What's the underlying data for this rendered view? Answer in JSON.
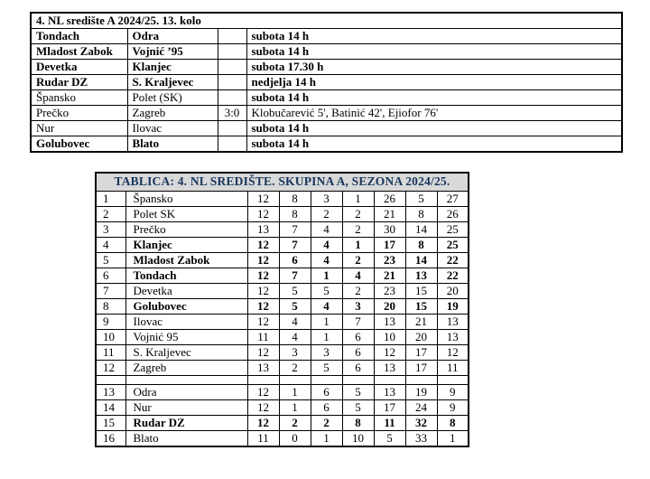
{
  "fixtures": {
    "title": "4. NL središte A 2024/25. 13. kolo",
    "rows": [
      {
        "home": "Tondach",
        "away": "Odra",
        "score": "",
        "info": "subota 14 h",
        "teams_bold": true,
        "info_bold": true
      },
      {
        "home": "Mladost Zabok",
        "away": "Vojnić ’95",
        "score": "",
        "info": "subota 14 h",
        "teams_bold": true,
        "info_bold": true
      },
      {
        "home": "Devetka",
        "away": "Klanjec",
        "score": "",
        "info": "subota 17.30 h",
        "teams_bold": true,
        "info_bold": true
      },
      {
        "home": "Rudar DZ",
        "away": "S. Kraljevec",
        "score": "",
        "info": "nedjelja 14 h",
        "teams_bold": true,
        "info_bold": true
      },
      {
        "home": "Špansko",
        "away": "Polet (SK)",
        "score": "",
        "info": "subota 14 h",
        "teams_bold": false,
        "info_bold": true
      },
      {
        "home": "Prečko",
        "away": "Zagreb",
        "score": "3:0",
        "info": "Klobučarević 5', Batinić 42', Ejiofor 76'",
        "teams_bold": false,
        "info_bold": false
      },
      {
        "home": "Nur",
        "away": "Ilovac",
        "score": "",
        "info": "subota 14 h",
        "teams_bold": false,
        "info_bold": true
      },
      {
        "home": "Golubovec",
        "away": "Blato",
        "score": "",
        "info": "subota 14 h",
        "teams_bold": true,
        "info_bold": true
      }
    ]
  },
  "standings": {
    "title": "TABLICA: 4. NL SREDIŠTE. SKUPINA A, SEZONA 2024/25.",
    "colors": {
      "title_text": "#17365d",
      "title_bg": "#d9d9d9",
      "border": "#000000"
    },
    "rows": [
      {
        "rank": "1",
        "team": "Špansko",
        "stats": [
          "12",
          "8",
          "3",
          "1",
          "26",
          "5",
          "27"
        ],
        "bold": false
      },
      {
        "rank": "2",
        "team": "Polet SK",
        "stats": [
          "12",
          "8",
          "2",
          "2",
          "21",
          "8",
          "26"
        ],
        "bold": false
      },
      {
        "rank": "3",
        "team": "Prečko",
        "stats": [
          "13",
          "7",
          "4",
          "2",
          "30",
          "14",
          "25"
        ],
        "bold": false
      },
      {
        "rank": "4",
        "team": "Klanjec",
        "stats": [
          "12",
          "7",
          "4",
          "1",
          "17",
          "8",
          "25"
        ],
        "bold": true
      },
      {
        "rank": "5",
        "team": "Mladost Zabok",
        "stats": [
          "12",
          "6",
          "4",
          "2",
          "23",
          "14",
          "22"
        ],
        "bold": true
      },
      {
        "rank": "6",
        "team": "Tondach",
        "stats": [
          "12",
          "7",
          "1",
          "4",
          "21",
          "13",
          "22"
        ],
        "bold": true
      },
      {
        "rank": "7",
        "team": "Devetka",
        "stats": [
          "12",
          "5",
          "5",
          "2",
          "23",
          "15",
          "20"
        ],
        "bold": false
      },
      {
        "rank": "8",
        "team": "Golubovec",
        "stats": [
          "12",
          "5",
          "4",
          "3",
          "20",
          "15",
          "19"
        ],
        "bold": true
      },
      {
        "rank": "9",
        "team": "Ilovac",
        "stats": [
          "12",
          "4",
          "1",
          "7",
          "13",
          "21",
          "13"
        ],
        "bold": false
      },
      {
        "rank": "10",
        "team": "Vojnić 95",
        "stats": [
          "11",
          "4",
          "1",
          "6",
          "10",
          "20",
          "13"
        ],
        "bold": false
      },
      {
        "rank": "11",
        "team": "S. Kraljevec",
        "stats": [
          "12",
          "3",
          "3",
          "6",
          "12",
          "17",
          "12"
        ],
        "bold": false
      },
      {
        "rank": "12",
        "team": "Zagreb",
        "stats": [
          "13",
          "2",
          "5",
          "6",
          "13",
          "17",
          "11"
        ],
        "bold": false
      },
      {
        "spacer": true
      },
      {
        "rank": "13",
        "team": "Odra",
        "stats": [
          "12",
          "1",
          "6",
          "5",
          "13",
          "19",
          "9"
        ],
        "bold": false
      },
      {
        "rank": "14",
        "team": "Nur",
        "stats": [
          "12",
          "1",
          "6",
          "5",
          "17",
          "24",
          "9"
        ],
        "bold": false
      },
      {
        "rank": "15",
        "team": "Rudar DZ",
        "stats": [
          "12",
          "2",
          "2",
          "8",
          "11",
          "32",
          "8"
        ],
        "bold": true
      },
      {
        "rank": "16",
        "team": "Blato",
        "stats": [
          "11",
          "0",
          "1",
          "10",
          "5",
          "33",
          "1"
        ],
        "bold": false
      }
    ]
  }
}
